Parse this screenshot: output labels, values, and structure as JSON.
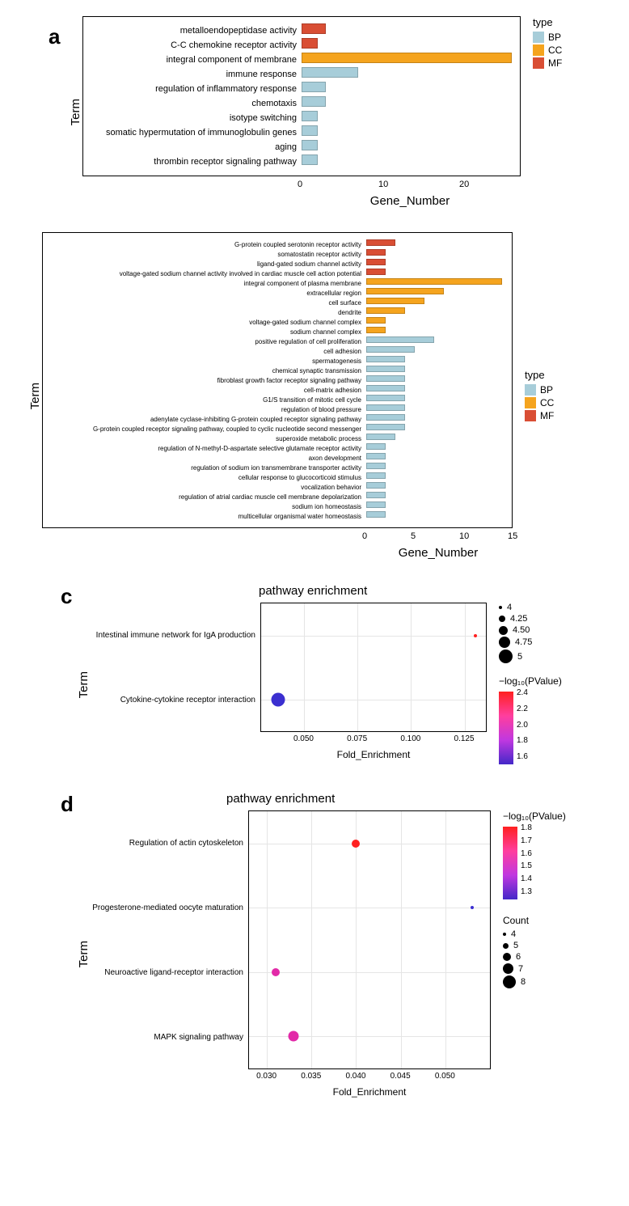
{
  "colors": {
    "BP": "#a7cdd9",
    "CC": "#f5a41e",
    "MF": "#d94e34",
    "plot_border": "#000000",
    "grid": "#e5e5e5",
    "bg": "#ffffff"
  },
  "panel_a": {
    "label": "a",
    "y_axis": "Term",
    "x_axis": "Gene_Number",
    "legend_title": "type",
    "legend": [
      "BP",
      "CC",
      "MF"
    ],
    "xlim": [
      0,
      27
    ],
    "xticks": [
      0,
      10,
      20
    ],
    "bars": [
      {
        "label": "metalloendopeptidase activity",
        "value": 3,
        "type": "MF"
      },
      {
        "label": "C-C chemokine receptor activity",
        "value": 2,
        "type": "MF"
      },
      {
        "label": "integral component of membrane",
        "value": 26,
        "type": "CC"
      },
      {
        "label": "immune response",
        "value": 7,
        "type": "BP"
      },
      {
        "label": "regulation of inflammatory response",
        "value": 3,
        "type": "BP"
      },
      {
        "label": "chemotaxis",
        "value": 3,
        "type": "BP"
      },
      {
        "label": "isotype switching",
        "value": 2,
        "type": "BP"
      },
      {
        "label": "somatic hypermutation of immunoglobulin genes",
        "value": 2,
        "type": "BP"
      },
      {
        "label": "aging",
        "value": 2,
        "type": "BP"
      },
      {
        "label": "thrombin receptor signaling pathway",
        "value": 2,
        "type": "BP"
      }
    ]
  },
  "panel_b": {
    "label": "b",
    "y_axis": "Term",
    "x_axis": "Gene_Number",
    "legend_title": "type",
    "legend": [
      "BP",
      "CC",
      "MF"
    ],
    "xlim": [
      0,
      15
    ],
    "xticks": [
      0,
      5,
      10,
      15
    ],
    "bars": [
      {
        "label": "G-protein coupled serotonin receptor activity",
        "value": 3,
        "type": "MF"
      },
      {
        "label": "somatostatin receptor activity",
        "value": 2,
        "type": "MF"
      },
      {
        "label": "ligand-gated sodium channel activity",
        "value": 2,
        "type": "MF"
      },
      {
        "label": "voltage-gated sodium channel activity involved in cardiac muscle cell action potential",
        "value": 2,
        "type": "MF"
      },
      {
        "label": "integral component of plasma membrane",
        "value": 14,
        "type": "CC"
      },
      {
        "label": "extracellular region",
        "value": 8,
        "type": "CC"
      },
      {
        "label": "cell surface",
        "value": 6,
        "type": "CC"
      },
      {
        "label": "dendrite",
        "value": 4,
        "type": "CC"
      },
      {
        "label": "voltage-gated sodium channel complex",
        "value": 2,
        "type": "CC"
      },
      {
        "label": "sodium channel complex",
        "value": 2,
        "type": "CC"
      },
      {
        "label": "positive regulation of cell proliferation",
        "value": 7,
        "type": "BP"
      },
      {
        "label": "cell adhesion",
        "value": 5,
        "type": "BP"
      },
      {
        "label": "spermatogenesis",
        "value": 4,
        "type": "BP"
      },
      {
        "label": "chemical synaptic transmission",
        "value": 4,
        "type": "BP"
      },
      {
        "label": "fibroblast growth factor receptor signaling pathway",
        "value": 4,
        "type": "BP"
      },
      {
        "label": "cell-matrix adhesion",
        "value": 4,
        "type": "BP"
      },
      {
        "label": "G1/S transition of mitotic cell cycle",
        "value": 4,
        "type": "BP"
      },
      {
        "label": "regulation of blood pressure",
        "value": 4,
        "type": "BP"
      },
      {
        "label": "adenylate cyclase-inhibiting G-protein coupled receptor signaling pathway",
        "value": 4,
        "type": "BP"
      },
      {
        "label": "G-protein coupled receptor signaling pathway, coupled to cyclic nucleotide second messenger",
        "value": 4,
        "type": "BP"
      },
      {
        "label": "superoxide metabolic process",
        "value": 3,
        "type": "BP"
      },
      {
        "label": "regulation of N-methyl-D-aspartate selective glutamate receptor activity",
        "value": 2,
        "type": "BP"
      },
      {
        "label": "axon development",
        "value": 2,
        "type": "BP"
      },
      {
        "label": "regulation of sodium ion transmembrane transporter activity",
        "value": 2,
        "type": "BP"
      },
      {
        "label": "cellular response to glucocorticoid stimulus",
        "value": 2,
        "type": "BP"
      },
      {
        "label": "vocalization behavior",
        "value": 2,
        "type": "BP"
      },
      {
        "label": "regulation of atrial cardiac muscle cell membrane depolarization",
        "value": 2,
        "type": "BP"
      },
      {
        "label": "sodium ion homeostasis",
        "value": 2,
        "type": "BP"
      },
      {
        "label": "multicellular organismal water homeostasis",
        "value": 2,
        "type": "BP"
      }
    ]
  },
  "panel_c": {
    "label": "c",
    "title": "pathway enrichment",
    "y_axis": "Term",
    "x_axis": "Fold_Enrichment",
    "xticks": [
      0.05,
      0.075,
      0.1,
      0.125
    ],
    "xlim": [
      0.03,
      0.135
    ],
    "size_legend": {
      "values": [
        4.0,
        4.25,
        4.5,
        4.75,
        5.0
      ],
      "radii": [
        2,
        4,
        5.5,
        7,
        8.5
      ]
    },
    "color_legend": {
      "title": "−log₁₀(PValue)",
      "ticks": [
        2.4,
        2.2,
        2.0,
        1.8,
        1.6
      ],
      "gradient": [
        "#ff2020",
        "#ff3e9e",
        "#c038e0",
        "#4428c8"
      ]
    },
    "points": [
      {
        "label": "Intestinal immune network for IgA production",
        "x": 0.13,
        "count": 4.0,
        "logp": 2.5,
        "color": "#ff2020"
      },
      {
        "label": "Cytokine-cytokine receptor interaction",
        "x": 0.038,
        "count": 5.0,
        "logp": 1.5,
        "color": "#3b2fd0"
      }
    ]
  },
  "panel_d": {
    "label": "d",
    "title": "pathway enrichment",
    "y_axis": "Term",
    "x_axis": "Fold_Enrichment",
    "xticks": [
      0.03,
      0.035,
      0.04,
      0.045,
      0.05
    ],
    "xlim": [
      0.028,
      0.055
    ],
    "color_legend": {
      "title": "−log₁₀(PValue)",
      "ticks": [
        1.8,
        1.7,
        1.6,
        1.5,
        1.4,
        1.3
      ],
      "gradient": [
        "#ff2020",
        "#ff3e9e",
        "#c038e0",
        "#4428c8"
      ]
    },
    "size_legend": {
      "title": "Count",
      "values": [
        4,
        5,
        6,
        7,
        8
      ],
      "radii": [
        2,
        3.5,
        5,
        6.5,
        8
      ]
    },
    "points": [
      {
        "label": "Regulation of actin cytoskeleton",
        "x": 0.04,
        "count": 6,
        "logp": 1.8,
        "color": "#ff2020"
      },
      {
        "label": "Progesterone-mediated oocyte maturation",
        "x": 0.053,
        "count": 4,
        "logp": 1.3,
        "color": "#3b2fd0"
      },
      {
        "label": "Neuroactive ligand-receptor interaction",
        "x": 0.031,
        "count": 6,
        "logp": 1.55,
        "color": "#e22aa8"
      },
      {
        "label": "MAPK signaling pathway",
        "x": 0.033,
        "count": 7,
        "logp": 1.55,
        "color": "#e22aa8"
      }
    ]
  }
}
